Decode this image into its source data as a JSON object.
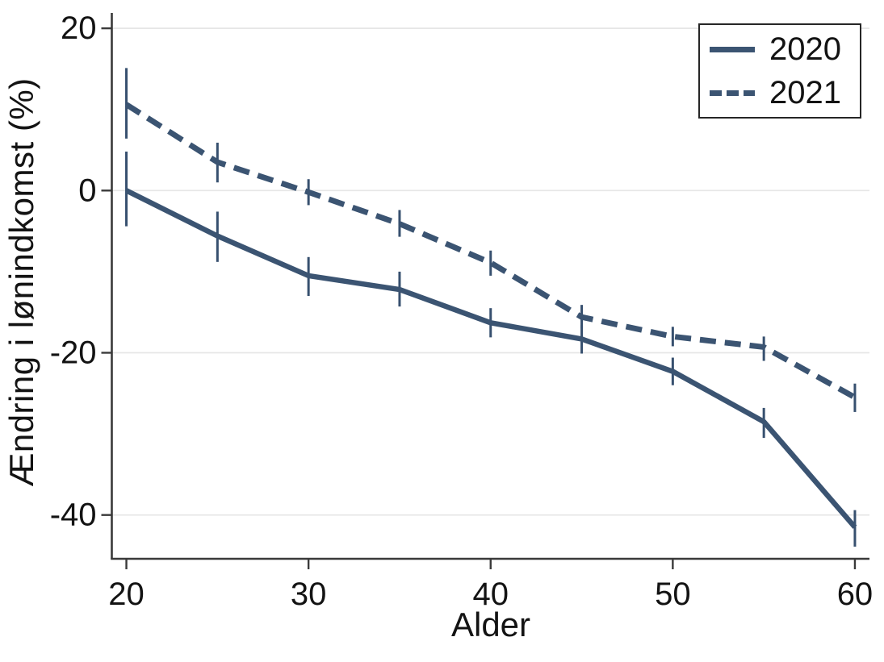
{
  "chart_data": {
    "type": "line",
    "title": "",
    "xlabel": "Alder",
    "ylabel": "Ændring i lønindkomst (%)",
    "x_ticks": [
      20,
      30,
      40,
      50,
      60
    ],
    "y_ticks": [
      20,
      0,
      -20,
      -40
    ],
    "xlim": [
      19.2,
      60.8
    ],
    "ylim": [
      -45.4,
      21.9
    ],
    "grid": "horizontal-only",
    "legend_position": "top-right",
    "x": [
      20,
      25,
      30,
      35,
      40,
      45,
      50,
      55,
      60
    ],
    "series": [
      {
        "name": "2020",
        "line_style": "solid",
        "values": [
          0.0,
          -5.6,
          -10.5,
          -12.2,
          -16.3,
          -18.3,
          -22.3,
          -28.5,
          -41.5
        ],
        "ci_high": [
          4.8,
          -2.6,
          -8.2,
          -10.0,
          -14.5,
          -16.6,
          -20.6,
          -26.8,
          -39.4
        ],
        "ci_low": [
          -4.4,
          -8.8,
          -13.0,
          -14.3,
          -18.1,
          -20.1,
          -24.0,
          -30.5,
          -43.9
        ]
      },
      {
        "name": "2021",
        "line_style": "dashed",
        "values": [
          10.6,
          3.5,
          -0.2,
          -4.1,
          -8.9,
          -15.6,
          -18.0,
          -19.3,
          -25.5
        ],
        "ci_high": [
          15.1,
          5.9,
          1.4,
          -2.4,
          -7.4,
          -14.1,
          -16.8,
          -18.0,
          -23.8
        ],
        "ci_low": [
          6.4,
          1.0,
          -1.8,
          -5.7,
          -10.5,
          -17.0,
          -19.2,
          -21.0,
          -27.3
        ]
      }
    ],
    "colors": {
      "line": "#3b5472",
      "error_bar": "#37506f",
      "grid": "#e6e6e6",
      "axis": "#3a3a3a",
      "text": "#131313",
      "background": "#ffffff"
    }
  }
}
